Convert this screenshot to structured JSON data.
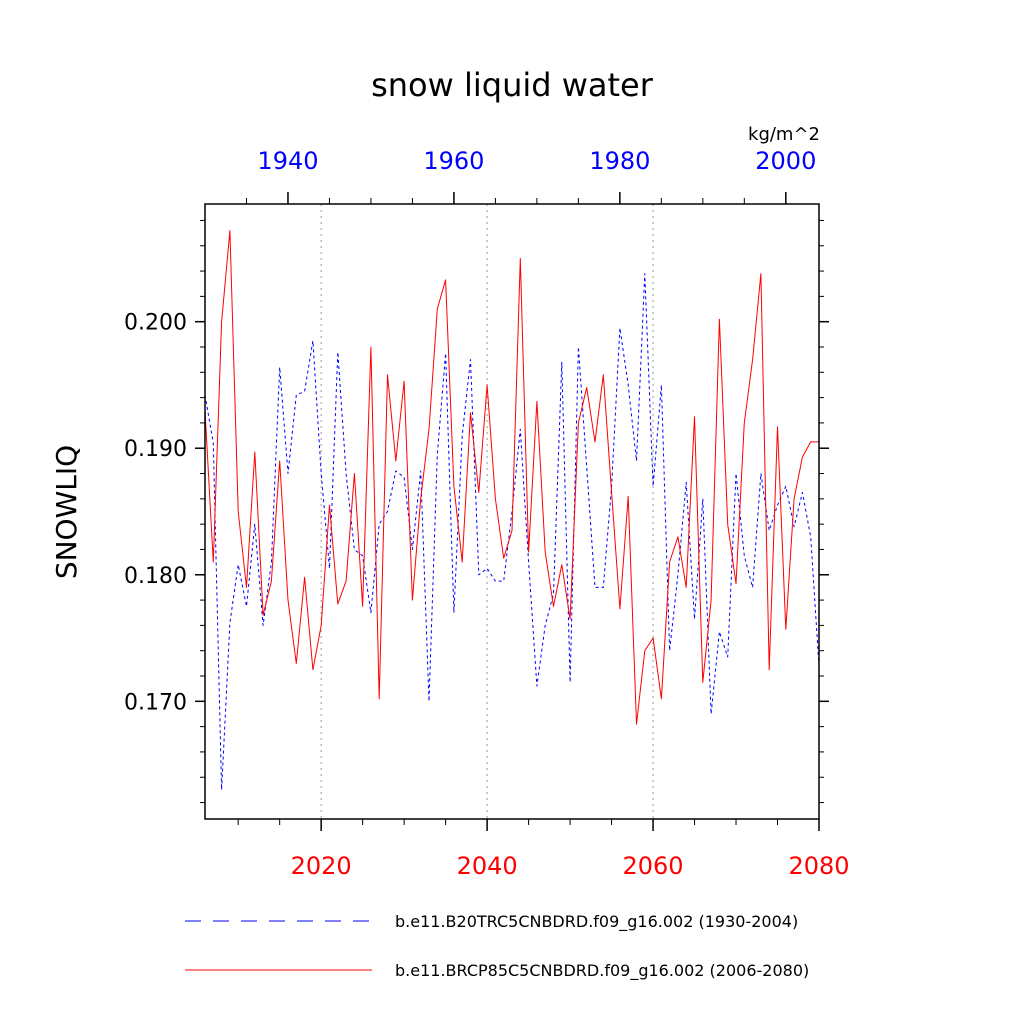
{
  "chart_data": {
    "type": "line",
    "title": "snow liquid water",
    "ylabel": "SNOWLIQ",
    "units": "kg/m^2",
    "ylim": [
      0.1607,
      0.2093
    ],
    "y_ticks": [
      0.17,
      0.18,
      0.19,
      0.2
    ],
    "y_tick_labels": [
      "0.170",
      "0.180",
      "0.190",
      "0.200"
    ],
    "grid": "vertical dotted at bottom-axis major ticks",
    "bottom_axis": {
      "range": [
        2006,
        2080
      ],
      "ticks": [
        2020,
        2040,
        2060,
        2080
      ],
      "tick_labels": [
        "2020",
        "2040",
        "2060",
        "2080"
      ],
      "color": "#ff0000"
    },
    "top_axis": {
      "range": [
        1930,
        2004
      ],
      "ticks": [
        1940,
        1960,
        1980,
        2000
      ],
      "tick_labels": [
        "1940",
        "1960",
        "1980",
        "2000"
      ],
      "color": "#0000ff"
    },
    "series": [
      {
        "name": "b.e11.B20TRC5CNBDRD.f09_g16.002 (1930-2004)",
        "axis": "top",
        "color": "#0000ff",
        "style": "dashed",
        "x_start": 1930,
        "values": [
          0.1942,
          0.1904,
          0.163,
          0.1762,
          0.1808,
          0.1775,
          0.184,
          0.176,
          0.181,
          0.1964,
          0.188,
          0.1942,
          0.1945,
          0.1985,
          0.188,
          0.1805,
          0.1976,
          0.188,
          0.182,
          0.1815,
          0.177,
          0.184,
          0.185,
          0.1882,
          0.1877,
          0.182,
          0.1882,
          0.17,
          0.1895,
          0.1975,
          0.177,
          0.191,
          0.197,
          0.18,
          0.1805,
          0.1795,
          0.1795,
          0.185,
          0.1915,
          0.181,
          0.1712,
          0.176,
          0.1785,
          0.1968,
          0.1715,
          0.198,
          0.1885,
          0.179,
          0.179,
          0.187,
          0.1995,
          0.195,
          0.189,
          0.2038,
          0.187,
          0.195,
          0.174,
          0.18,
          0.1873,
          0.1765,
          0.186,
          0.169,
          0.1755,
          0.1735,
          0.188,
          0.1815,
          0.179,
          0.188,
          0.1835,
          0.1855,
          0.187,
          0.1838,
          0.1865,
          0.183,
          0.1728
        ]
      },
      {
        "name": "b.e11.BRCP85C5CNBDRD.f09_g16.002 (2006-2080)",
        "axis": "bottom",
        "color": "#ff0000",
        "style": "solid",
        "x_start": 2006,
        "values": [
          0.193,
          0.181,
          0.2,
          0.2072,
          0.185,
          0.179,
          0.1897,
          0.1768,
          0.1795,
          0.189,
          0.178,
          0.173,
          0.1798,
          0.1725,
          0.176,
          0.1855,
          0.1777,
          0.1795,
          0.188,
          0.1775,
          0.198,
          0.1702,
          0.1958,
          0.189,
          0.1953,
          0.178,
          0.186,
          0.1915,
          0.201,
          0.2033,
          0.187,
          0.181,
          0.1928,
          0.1865,
          0.195,
          0.186,
          0.1813,
          0.1835,
          0.205,
          0.1818,
          0.1937,
          0.1818,
          0.1775,
          0.1808,
          0.1765,
          0.192,
          0.1948,
          0.1905,
          0.1958,
          0.1865,
          0.1773,
          0.1862,
          0.1682,
          0.174,
          0.175,
          0.1702,
          0.181,
          0.183,
          0.179,
          0.1925,
          0.1715,
          0.178,
          0.2002,
          0.184,
          0.1793,
          0.192,
          0.197,
          0.2038,
          0.1725,
          0.1917,
          0.1757,
          0.186,
          0.1893,
          0.1905,
          0.1905
        ]
      }
    ],
    "legend": "below plot"
  }
}
